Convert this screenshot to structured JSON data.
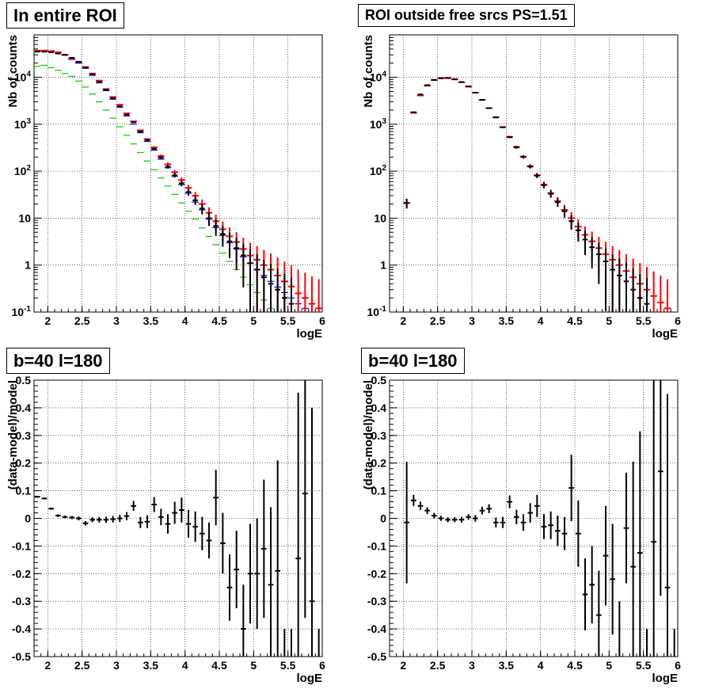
{
  "colors": {
    "data": "#000000",
    "model": "#ff0000",
    "model_alt": "#0000ff",
    "component": "#00cc00",
    "grid": "#000000"
  },
  "chart_data": [
    {
      "type": "scatter",
      "title": "In entire ROI",
      "xlabel": "logE",
      "ylabel": "Nb of counts",
      "xlim": [
        1.8,
        6.0
      ],
      "ylim": [
        0.1,
        80000
      ],
      "log_y": true,
      "grid": true,
      "x_ticks": [
        "2",
        "2.5",
        "3",
        "3.5",
        "4",
        "4.5",
        "5",
        "5.5",
        "6"
      ],
      "y_ticks": [
        "10^-1",
        "1",
        "10",
        "10^2",
        "10^3",
        "10^4"
      ],
      "bin_half_width": 0.05,
      "x": [
        1.85,
        1.95,
        2.05,
        2.15,
        2.25,
        2.35,
        2.45,
        2.55,
        2.65,
        2.75,
        2.85,
        2.95,
        3.05,
        3.15,
        3.25,
        3.35,
        3.45,
        3.55,
        3.65,
        3.75,
        3.85,
        3.95,
        4.05,
        4.15,
        4.25,
        4.35,
        4.45,
        4.55,
        4.65,
        4.75,
        4.85,
        4.95,
        5.05,
        5.15,
        5.25,
        5.35,
        5.45,
        5.55,
        5.65,
        5.75,
        5.85,
        5.95
      ],
      "series": [
        {
          "kind": "data",
          "color": "#000000",
          "values": [
            35000,
            35000,
            34000,
            32000,
            30000,
            26000,
            21000,
            16000,
            11500,
            8000,
            5400,
            3600,
            2400,
            1600,
            1100,
            700,
            460,
            300,
            195,
            125,
            82,
            55,
            36,
            24,
            16,
            10,
            6.8,
            4.6,
            3.2,
            2.3,
            1.6,
            1.1,
            0.8,
            0.55,
            0.4,
            0.3,
            0.2,
            0.15,
            0.1,
            0.1,
            0.1,
            0.1
          ]
        },
        {
          "kind": "model",
          "color": "#ff0000",
          "values": [
            37000,
            37000,
            36000,
            34000,
            30000,
            25000,
            21500,
            16500,
            12000,
            8500,
            5600,
            3800,
            2600,
            1700,
            1150,
            740,
            480,
            320,
            210,
            140,
            95,
            65,
            44,
            30,
            20,
            13,
            8.6,
            5.8,
            4.1,
            3.1,
            2.2,
            1.6,
            1.3,
            1.0,
            0.8,
            0.6,
            0.45,
            0.35,
            0.25,
            0.2,
            0.15,
            0.12
          ]
        },
        {
          "kind": "model_alt",
          "color": "#0000ff",
          "values": [
            36000,
            36000,
            35000,
            33000,
            29500,
            24000,
            20000,
            15500,
            11000,
            7600,
            5200,
            3400,
            2300,
            1500,
            1000,
            660,
            430,
            280,
            180,
            118,
            78,
            52,
            34,
            22,
            15,
            9.5,
            6.3,
            4.3,
            3.0,
            2.2,
            1.5,
            1.1,
            0.8,
            0.6,
            0.45,
            0.34,
            0.26,
            0.2,
            0.15,
            0.12,
            0.1,
            0.1
          ]
        },
        {
          "kind": "component",
          "color": "#00cc00",
          "values": [
            17000,
            18000,
            16000,
            14000,
            12000,
            10500,
            8300,
            6200,
            4400,
            3000,
            2000,
            1350,
            880,
            580,
            380,
            250,
            165,
            108,
            72,
            48,
            32,
            21,
            14,
            9.5,
            6.2,
            4.1,
            2.7,
            1.8,
            1.2,
            0.8,
            0.55,
            0.38,
            0.26,
            0.18,
            0.12,
            0.1,
            0.1,
            0.1,
            0.1,
            0.1,
            0.1,
            0.1
          ]
        }
      ]
    },
    {
      "type": "scatter",
      "title": "ROI outside free srcs PS=1.51",
      "xlabel": "logE",
      "ylabel": "Nb of counts",
      "xlim": [
        1.8,
        6.0
      ],
      "ylim": [
        0.1,
        80000
      ],
      "log_y": true,
      "grid": true,
      "x_ticks": [
        "2",
        "2.5",
        "3",
        "3.5",
        "4",
        "4.5",
        "5",
        "5.5",
        "6"
      ],
      "y_ticks": [
        "10^-1",
        "1",
        "10",
        "10^2",
        "10^3",
        "10^4"
      ],
      "bin_half_width": 0.05,
      "x": [
        2.05,
        2.15,
        2.25,
        2.35,
        2.45,
        2.55,
        2.65,
        2.75,
        2.85,
        2.95,
        3.05,
        3.15,
        3.25,
        3.35,
        3.45,
        3.55,
        3.65,
        3.75,
        3.85,
        3.95,
        4.05,
        4.15,
        4.25,
        4.35,
        4.45,
        4.55,
        4.65,
        4.75,
        4.85,
        4.95,
        5.05,
        5.15,
        5.25,
        5.35,
        5.45,
        5.55,
        5.65,
        5.75,
        5.85,
        5.95
      ],
      "series": [
        {
          "kind": "data",
          "color": "#000000",
          "values": [
            21,
            1800,
            4300,
            6800,
            8800,
            9600,
            9700,
            9100,
            7900,
            6400,
            4700,
            3300,
            2200,
            1400,
            860,
            530,
            320,
            200,
            125,
            80,
            50,
            33,
            22,
            14,
            8.6,
            5.5,
            3.5,
            2.4,
            1.7,
            1.2,
            0.8,
            0.6,
            0.45,
            0.3,
            0.2,
            0.15,
            0.1,
            0.1,
            0.1,
            0.1
          ]
        },
        {
          "kind": "model",
          "color": "#ff0000",
          "values": [
            21,
            1750,
            4100,
            6600,
            8700,
            9500,
            9600,
            9000,
            7800,
            6300,
            4700,
            3300,
            2200,
            1400,
            870,
            540,
            330,
            205,
            128,
            82,
            52,
            34,
            23,
            15,
            10,
            6.6,
            4.4,
            3.2,
            2.3,
            1.7,
            1.3,
            1.0,
            0.75,
            0.55,
            0.4,
            0.3,
            0.22,
            0.16,
            0.12,
            0.1
          ]
        }
      ]
    },
    {
      "type": "scatter",
      "title": "b=40 l=180",
      "xlabel": "logE",
      "ylabel": "(data-model)/model",
      "xlim": [
        1.8,
        6.0
      ],
      "ylim": [
        -0.5,
        0.5
      ],
      "grid": true,
      "x_ticks": [
        "2",
        "2.5",
        "3",
        "3.5",
        "4",
        "4.5",
        "5",
        "5.5",
        "6"
      ],
      "y_ticks": [
        "-0.5",
        "-0.4",
        "-0.3",
        "-0.2",
        "-0.1",
        "0",
        "0.1",
        "0.2",
        "0.3",
        "0.4",
        "0.5"
      ],
      "bin_half_width": 0.05,
      "x": [
        1.85,
        1.95,
        2.05,
        2.15,
        2.25,
        2.35,
        2.45,
        2.55,
        2.65,
        2.75,
        2.85,
        2.95,
        3.05,
        3.15,
        3.25,
        3.35,
        3.45,
        3.55,
        3.65,
        3.75,
        3.85,
        3.95,
        4.05,
        4.15,
        4.25,
        4.35,
        4.45,
        4.55,
        4.65,
        4.75,
        4.85,
        4.95,
        5.05,
        5.15,
        5.25,
        5.35,
        5.45,
        5.55,
        5.65,
        5.75,
        5.85,
        5.95
      ],
      "values": [
        0.078,
        0.072,
        0.035,
        0.01,
        0.005,
        0.003,
        0.0,
        -0.018,
        -0.005,
        -0.005,
        -0.005,
        -0.003,
        0.0,
        0.008,
        0.045,
        -0.015,
        -0.012,
        0.05,
        0.005,
        -0.02,
        0.02,
        0.03,
        -0.02,
        -0.03,
        -0.055,
        -0.08,
        0.075,
        -0.09,
        -0.25,
        -0.185,
        -0.4,
        -0.2,
        -0.2,
        -0.11,
        -0.24,
        -0.19,
        -0.6,
        -0.6,
        -0.145,
        0.09,
        -0.3,
        -0.6
      ],
      "errors": [
        0.003,
        0.003,
        0.004,
        0.005,
        0.005,
        0.006,
        0.007,
        0.008,
        0.009,
        0.01,
        0.011,
        0.012,
        0.013,
        0.015,
        0.018,
        0.02,
        0.023,
        0.027,
        0.03,
        0.035,
        0.04,
        0.045,
        0.05,
        0.055,
        0.06,
        0.065,
        0.1,
        0.11,
        0.12,
        0.14,
        0.16,
        0.18,
        0.2,
        0.25,
        0.28,
        0.4,
        0.2,
        0.2,
        0.6,
        0.45,
        0.7,
        0.2
      ]
    },
    {
      "type": "scatter",
      "title": "b=40 l=180",
      "xlabel": "logE",
      "ylabel": "(data-model)/model",
      "xlim": [
        1.8,
        6.0
      ],
      "ylim": [
        -0.5,
        0.5
      ],
      "grid": true,
      "x_ticks": [
        "2",
        "2.5",
        "3",
        "3.5",
        "4",
        "4.5",
        "5",
        "5.5",
        "6"
      ],
      "y_ticks": [
        "-0.5",
        "-0.4",
        "-0.3",
        "-0.2",
        "-0.1",
        "0",
        "0.1",
        "0.2",
        "0.3",
        "0.4",
        "0.5"
      ],
      "bin_half_width": 0.05,
      "x": [
        2.05,
        2.15,
        2.25,
        2.35,
        2.45,
        2.55,
        2.65,
        2.75,
        2.85,
        2.95,
        3.05,
        3.15,
        3.25,
        3.35,
        3.45,
        3.55,
        3.65,
        3.75,
        3.85,
        3.95,
        4.05,
        4.15,
        4.25,
        4.35,
        4.45,
        4.55,
        4.65,
        4.75,
        4.85,
        4.95,
        5.05,
        5.15,
        5.25,
        5.35,
        5.45,
        5.55,
        5.65,
        5.75,
        5.85,
        5.95
      ],
      "values": [
        -0.015,
        0.065,
        0.045,
        0.028,
        0.01,
        0.0,
        -0.005,
        -0.005,
        -0.005,
        0.005,
        0.0,
        0.028,
        0.035,
        -0.015,
        -0.015,
        0.06,
        0.005,
        -0.015,
        0.02,
        0.045,
        -0.03,
        -0.025,
        -0.045,
        -0.055,
        0.11,
        -0.055,
        -0.275,
        -0.24,
        -0.35,
        -0.135,
        -0.22,
        -0.6,
        -0.035,
        -0.175,
        -0.125,
        -0.6,
        -0.085,
        0.17,
        -0.25,
        -0.6
      ],
      "errors": [
        0.22,
        0.02,
        0.015,
        0.012,
        0.01,
        0.009,
        0.009,
        0.009,
        0.01,
        0.01,
        0.012,
        0.014,
        0.016,
        0.018,
        0.02,
        0.023,
        0.026,
        0.03,
        0.035,
        0.04,
        0.045,
        0.05,
        0.055,
        0.06,
        0.12,
        0.12,
        0.13,
        0.14,
        0.16,
        0.18,
        0.2,
        0.3,
        0.2,
        0.38,
        0.44,
        0.2,
        0.6,
        0.45,
        0.7,
        0.2
      ]
    }
  ]
}
